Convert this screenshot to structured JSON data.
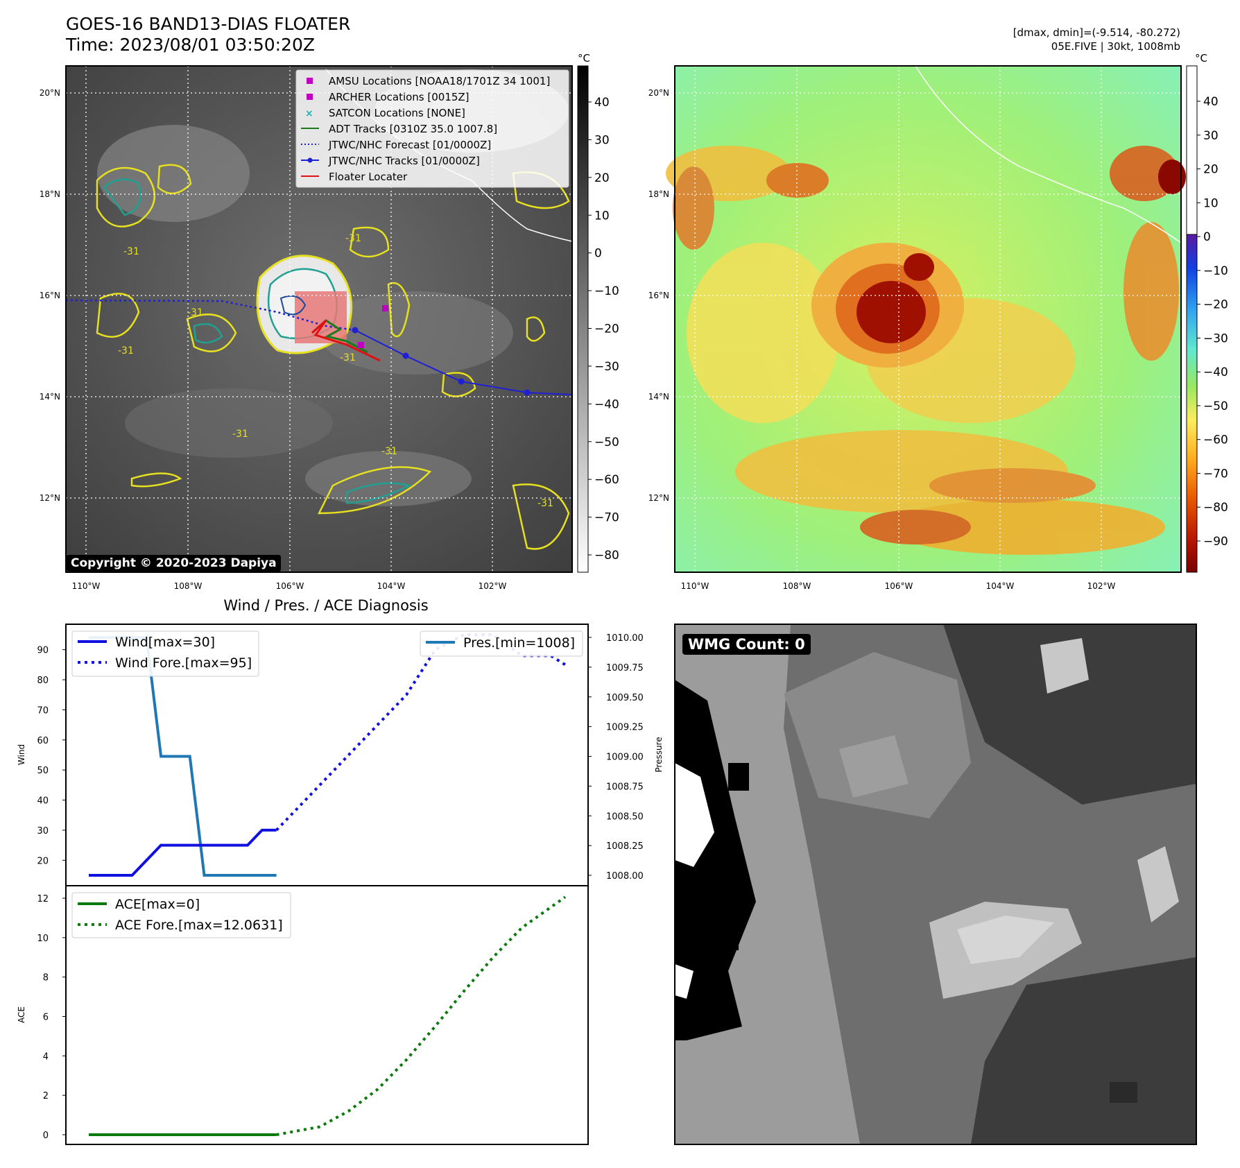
{
  "header": {
    "title": "GOES-16 BAND13-DIAS FLOATER",
    "time": "Time: 2023/08/01 03:50:20Z",
    "dmax_dmin": "[dmax, dmin]=(-9.514, -80.272)",
    "storm": "05E.FIVE | 30kt, 1008mb"
  },
  "maps": {
    "lon_labels": [
      "110°W",
      "108°W",
      "106°W",
      "104°W",
      "102°W"
    ],
    "lat_labels": [
      "20°N",
      "18°N",
      "16°N",
      "14°N",
      "12°N"
    ],
    "copyright": "Copyright © 2020-2023 Dapiya",
    "contour_label": "-31",
    "legend": [
      {
        "label": "AMSU Locations [NOAA18/1701Z 34 1001]",
        "icon": "magenta-square",
        "color": "#c000c0"
      },
      {
        "label": "ARCHER Locations [0015Z]",
        "icon": "magenta-square",
        "color": "#c000c0"
      },
      {
        "label": "SATCON Locations [NONE]",
        "icon": "cyan-x",
        "color": "#20b0b0"
      },
      {
        "label": "ADT Tracks [0310Z 35.0 1007.8]",
        "icon": "green-line",
        "color": "#1a7a1a"
      },
      {
        "label": "JTWC/NHC Forecast [01/0000Z]",
        "icon": "blue-dotted-line",
        "color": "#1f1fd6"
      },
      {
        "label": "JTWC/NHC Tracks [01/0000Z]",
        "icon": "blue-line-dot",
        "color": "#1f1fd6"
      },
      {
        "label": "Floater Locater",
        "icon": "red-line",
        "color": "#e01010"
      }
    ],
    "colorbar_unit": "°C",
    "gray_colorbar_ticks": [
      "40",
      "30",
      "20",
      "10",
      "0",
      "−10",
      "−20",
      "−30",
      "−40",
      "−50",
      "−60",
      "−70",
      "−80"
    ],
    "color_colorbar_ticks": [
      "40",
      "30",
      "20",
      "10",
      "0",
      "−10",
      "−20",
      "−30",
      "−40",
      "−50",
      "−60",
      "−70",
      "−80",
      "−90"
    ]
  },
  "diagnosis": {
    "title": "Wind / Pres. / ACE Diagnosis",
    "wind_ylabel": "Wind",
    "pressure_ylabel": "Pressure",
    "ace_ylabel": "ACE",
    "legend_wind": "Wind[max=30]",
    "legend_wind_fore": "Wind Fore.[max=95]",
    "legend_pres": "Pres.[min=1008]",
    "legend_ace": "ACE[max=0]",
    "legend_ace_fore": "ACE Fore.[max=12.0631]",
    "wind_ticks": [
      "90",
      "80",
      "70",
      "60",
      "50",
      "40",
      "30",
      "20"
    ],
    "pres_ticks": [
      "1010.00",
      "1009.75",
      "1009.50",
      "1009.25",
      "1009.00",
      "1008.75",
      "1008.50",
      "1008.25",
      "1008.00"
    ],
    "ace_ticks": [
      "12",
      "10",
      "8",
      "6",
      "4",
      "2",
      "0"
    ],
    "colors": {
      "wind": "#1010e0",
      "pres": "#1f77b4",
      "ace": "#0a7a0a"
    }
  },
  "wmg": {
    "label": "WMG Count: 0"
  },
  "chart_data": [
    {
      "type": "line",
      "title": "Wind / Pres. / ACE Diagnosis",
      "ylabel": "Wind",
      "ylim": [
        14,
        96
      ],
      "series": [
        {
          "name": "Wind[max=30]",
          "x": [
            0,
            1.5,
            2.5,
            3,
            5.5,
            6,
            6.5
          ],
          "values": [
            15,
            15,
            25,
            25,
            25,
            30,
            30
          ]
        },
        {
          "name": "Wind Fore.[max=95]",
          "x": [
            6.5,
            7.5,
            8.5,
            9,
            10,
            11,
            12,
            13,
            14,
            15,
            16,
            16.5
          ],
          "values": [
            30,
            40,
            50,
            55,
            65,
            75,
            90,
            95,
            95,
            88,
            88,
            85
          ]
        }
      ]
    },
    {
      "type": "line",
      "ylabel": "Pressure",
      "ylim": [
        1007.95,
        1010.05
      ],
      "series": [
        {
          "name": "Pres.[min=1008]",
          "x": [
            0,
            2,
            2.5,
            3.5,
            4,
            6.5
          ],
          "values": [
            1010,
            1010,
            1009,
            1009,
            1008,
            1008
          ]
        }
      ]
    },
    {
      "type": "line",
      "ylabel": "ACE",
      "ylim": [
        -0.5,
        12.5
      ],
      "series": [
        {
          "name": "ACE[max=0]",
          "x": [
            0,
            6.5
          ],
          "values": [
            0,
            0
          ]
        },
        {
          "name": "ACE Fore.[max=12.0631]",
          "x": [
            6.5,
            8,
            9,
            10,
            11,
            12,
            13,
            14,
            15,
            16.5
          ],
          "values": [
            0,
            0.4,
            1.2,
            2.3,
            3.8,
            5.5,
            7.3,
            9.0,
            10.5,
            12.06
          ]
        }
      ]
    }
  ]
}
